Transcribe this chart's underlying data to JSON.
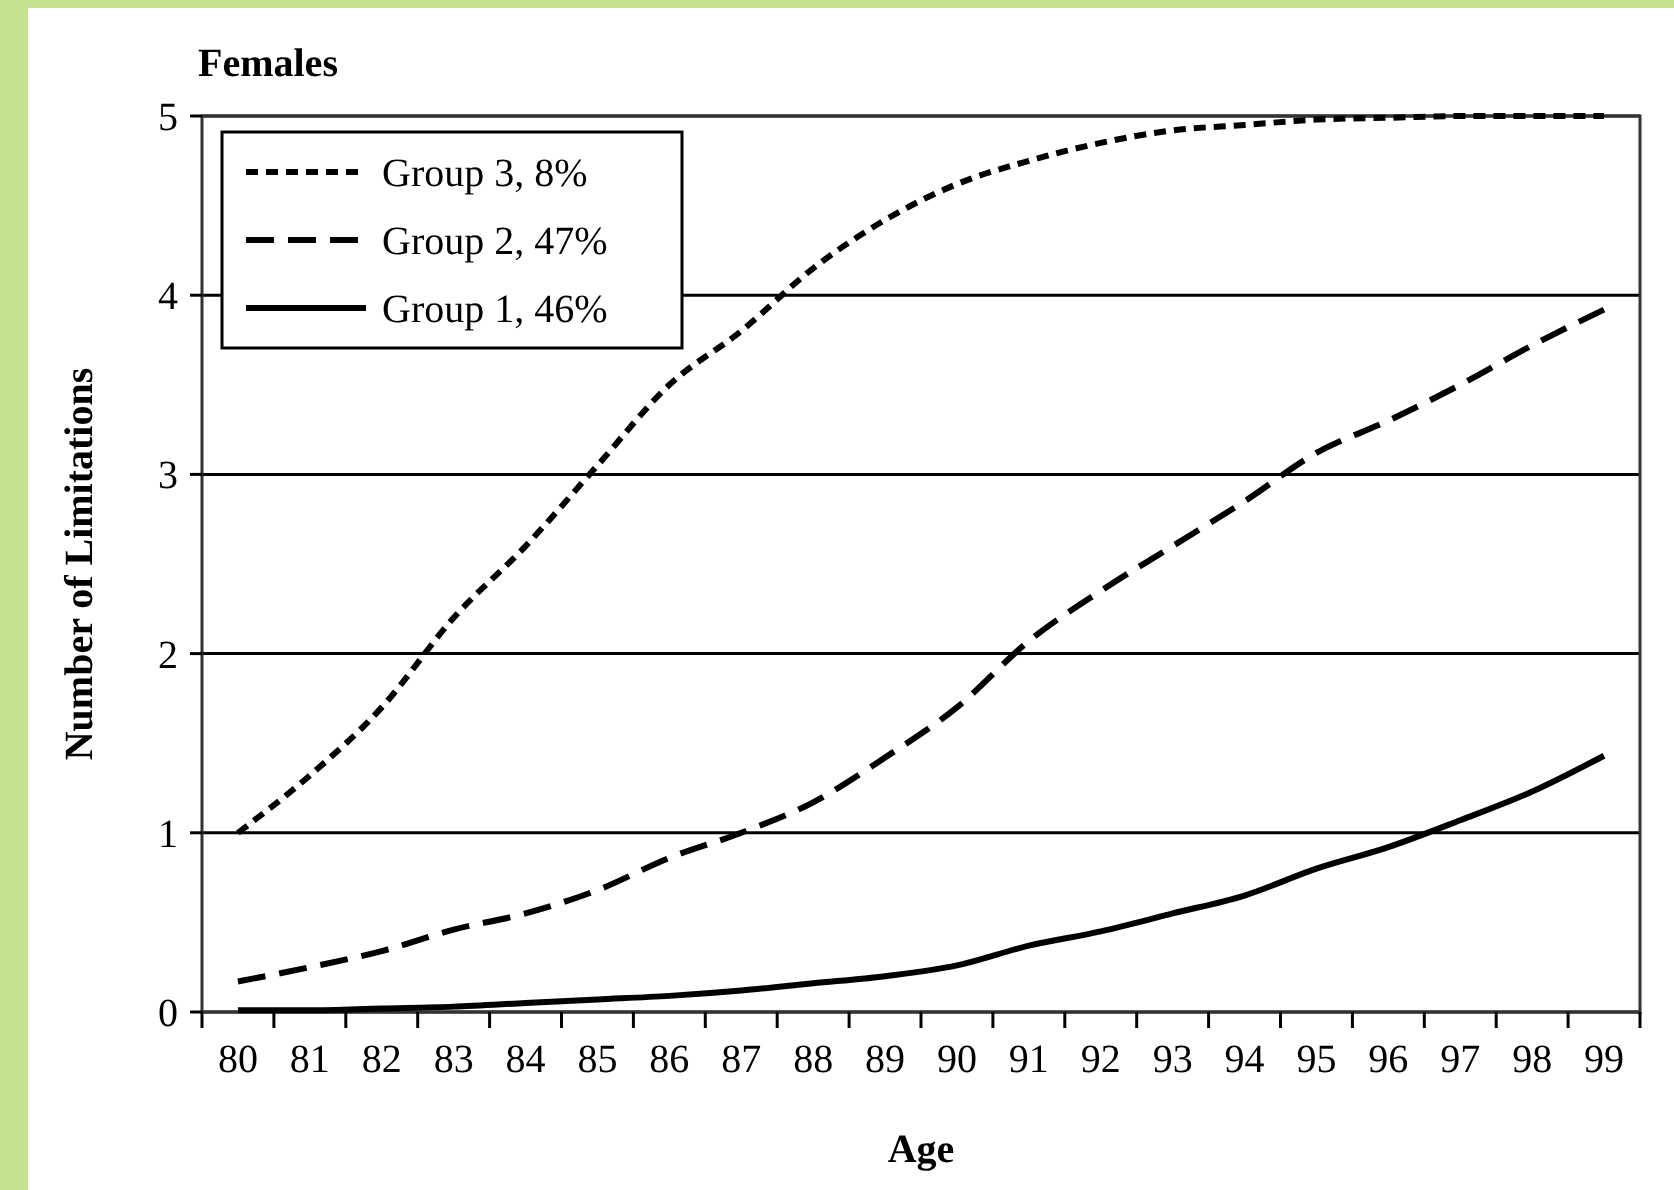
{
  "chart_data": {
    "type": "line",
    "title": "Females",
    "xlabel": "Age",
    "ylabel": "Number of Limitations",
    "categories": [
      "80",
      "81",
      "82",
      "83",
      "84",
      "85",
      "86",
      "87",
      "88",
      "89",
      "90",
      "91",
      "92",
      "93",
      "94",
      "95",
      "96",
      "97",
      "98",
      "99"
    ],
    "series": [
      {
        "name": "Group 3, 8%",
        "color": "#000000",
        "line_style": "dotted",
        "values": [
          1.0,
          1.32,
          1.7,
          2.2,
          2.6,
          3.05,
          3.5,
          3.8,
          4.15,
          4.42,
          4.62,
          4.75,
          4.85,
          4.92,
          4.95,
          4.98,
          4.99,
          5.0,
          5.0,
          5.0
        ]
      },
      {
        "name": "Group 2, 47%",
        "color": "#000000",
        "line_style": "dashed",
        "values": [
          0.17,
          0.25,
          0.34,
          0.46,
          0.55,
          0.68,
          0.86,
          1.0,
          1.17,
          1.42,
          1.7,
          2.07,
          2.35,
          2.6,
          2.85,
          3.12,
          3.3,
          3.5,
          3.72,
          3.92
        ]
      },
      {
        "name": "Group 1, 46%",
        "color": "#000000",
        "line_style": "solid",
        "values": [
          0.01,
          0.01,
          0.02,
          0.03,
          0.05,
          0.07,
          0.09,
          0.12,
          0.16,
          0.2,
          0.26,
          0.37,
          0.45,
          0.55,
          0.65,
          0.8,
          0.92,
          1.07,
          1.23,
          1.43
        ]
      }
    ],
    "ylim": [
      0,
      5
    ],
    "yticks": [
      0,
      1,
      2,
      3,
      4,
      5
    ],
    "grid": "y",
    "legend": "top left"
  }
}
